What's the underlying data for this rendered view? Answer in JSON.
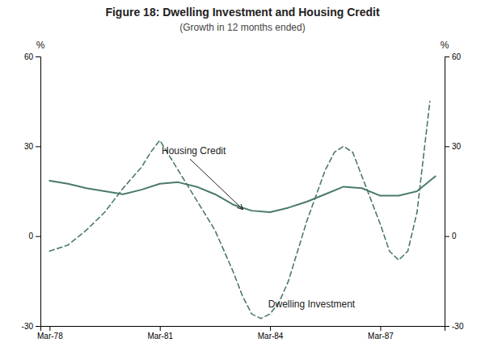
{
  "chart_data": {
    "type": "line",
    "title": "Figure 18: Dwelling Investment and Housing Credit",
    "subtitle": "(Growth in 12 months ended)",
    "y_label": "%",
    "y2_label": "%",
    "xlim": [
      1978.0,
      1989.0
    ],
    "xticks": [
      {
        "value": 1978.25,
        "label": "Mar-78"
      },
      {
        "value": 1981.25,
        "label": "Mar-81"
      },
      {
        "value": 1984.25,
        "label": "Mar-84"
      },
      {
        "value": 1987.25,
        "label": "Mar-87"
      }
    ],
    "ylim": [
      -30,
      60
    ],
    "yticks": [
      -30,
      0,
      30,
      60
    ],
    "y2lim": [
      -30,
      60
    ],
    "y2ticks": [
      -30,
      0,
      30,
      60
    ],
    "grid": false,
    "series": [
      {
        "color": "#4a7a6a",
        "line_style": "solid",
        "x": [
          1978.25,
          1978.75,
          1979.25,
          1979.75,
          1980.25,
          1980.75,
          1981.25,
          1981.75,
          1982.25,
          1982.75,
          1983.25,
          1983.75,
          1984.25,
          1984.75,
          1985.25,
          1985.75,
          1986.25,
          1986.75,
          1987.25,
          1987.75,
          1988.25,
          1988.75
        ],
        "values": [
          18.5,
          17.5,
          16.0,
          15.0,
          14.0,
          15.5,
          17.5,
          18.0,
          16.5,
          14.0,
          10.5,
          8.5,
          8.0,
          9.5,
          11.5,
          14.0,
          16.5,
          16.0,
          13.5,
          13.5,
          15.0,
          20.0
        ]
      },
      {
        "color": "#4a7a6a",
        "line_style": "dashed",
        "x": [
          1978.25,
          1978.75,
          1979.25,
          1979.75,
          1980.25,
          1980.75,
          1981.0,
          1981.25,
          1981.75,
          1982.25,
          1982.75,
          1983.0,
          1983.25,
          1983.5,
          1983.75,
          1984.0,
          1984.25,
          1984.5,
          1984.75,
          1985.25,
          1985.75,
          1986.0,
          1986.25,
          1986.5,
          1986.75,
          1987.0,
          1987.25,
          1987.5,
          1987.75,
          1988.0,
          1988.25,
          1988.6
        ],
        "values": [
          -5.0,
          -3.0,
          2.0,
          8.0,
          16.0,
          23.0,
          28.0,
          32.0,
          22.0,
          12.0,
          2.0,
          -5.0,
          -12.0,
          -20.0,
          -26.0,
          -27.5,
          -26.0,
          -22.0,
          -15.0,
          5.0,
          22.0,
          28.0,
          30.0,
          28.0,
          20.0,
          12.0,
          4.0,
          -5.0,
          -8.0,
          -5.0,
          8.0,
          45.0
        ]
      }
    ],
    "annotations": [
      {
        "text": "Housing Credit",
        "x": 1983.5,
        "y": 8.5,
        "arrow": true
      },
      {
        "text": "Dwelling Investment",
        "x": 1984.2,
        "y": -21.0,
        "arrow": false
      }
    ]
  }
}
